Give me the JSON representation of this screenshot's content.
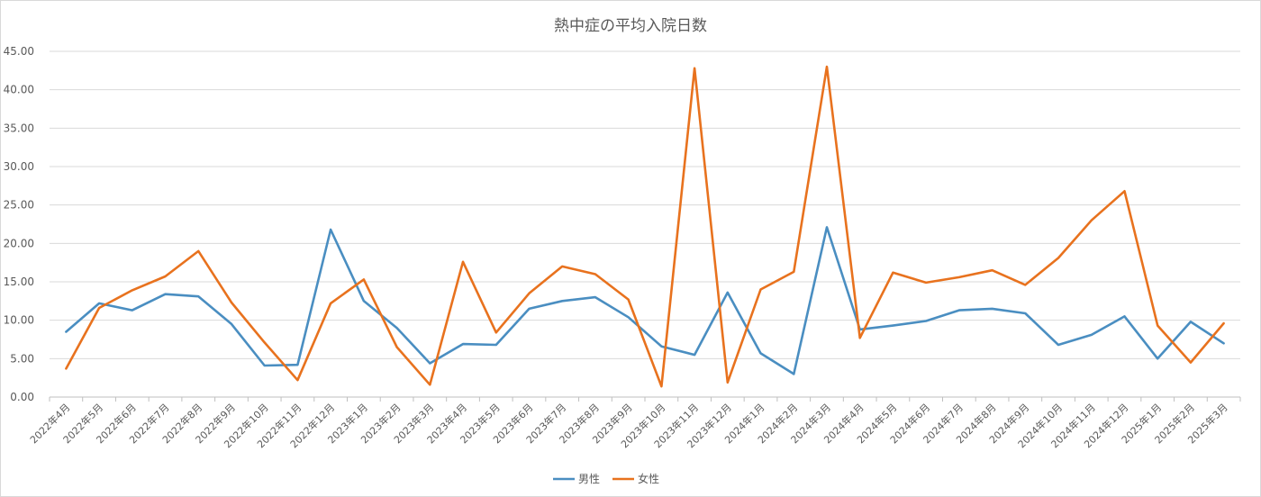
{
  "chart_data": {
    "type": "line",
    "title": "熱中症の平均入院日数",
    "xlabel": "",
    "ylabel": "",
    "ylim": [
      0,
      45
    ],
    "yticks": [
      "0.00",
      "5.00",
      "10.00",
      "15.00",
      "20.00",
      "25.00",
      "30.00",
      "35.00",
      "40.00",
      "45.00"
    ],
    "grid": true,
    "legend_position": "bottom",
    "categories": [
      "2022年4月",
      "2022年5月",
      "2022年6月",
      "2022年7月",
      "2022年8月",
      "2022年9月",
      "2022年10月",
      "2022年11月",
      "2022年12月",
      "2023年1月",
      "2023年2月",
      "2023年3月",
      "2023年4月",
      "2023年5月",
      "2023年6月",
      "2023年7月",
      "2023年8月",
      "2023年9月",
      "2023年10月",
      "2023年11月",
      "2023年12月",
      "2024年1月",
      "2024年2月",
      "2024年3月",
      "2024年4月",
      "2024年5月",
      "2024年6月",
      "2024年7月",
      "2024年8月",
      "2024年9月",
      "2024年10月",
      "2024年11月",
      "2024年12月",
      "2025年1月",
      "2025年2月",
      "2025年3月"
    ],
    "series": [
      {
        "name": "男性",
        "color": "#4a8ec1",
        "values": [
          8.5,
          12.2,
          11.3,
          13.4,
          13.1,
          9.5,
          4.1,
          4.2,
          21.8,
          12.5,
          9.0,
          4.4,
          6.9,
          6.8,
          11.5,
          12.5,
          13.0,
          10.4,
          6.6,
          5.5,
          13.6,
          5.7,
          3.0,
          22.1,
          8.8,
          9.3,
          9.9,
          11.3,
          11.5,
          10.9,
          6.8,
          8.1,
          10.5,
          5.0,
          9.8,
          7.0
        ]
      },
      {
        "name": "女性",
        "color": "#e8721e",
        "values": [
          3.7,
          11.6,
          13.9,
          15.7,
          19.0,
          12.3,
          7.1,
          2.2,
          12.2,
          15.3,
          6.5,
          1.6,
          17.6,
          8.4,
          13.5,
          17.0,
          16.0,
          12.7,
          1.4,
          42.8,
          1.9,
          14.0,
          16.3,
          43.0,
          7.7,
          16.2,
          14.9,
          15.6,
          16.5,
          14.6,
          18.1,
          23.0,
          26.8,
          9.3,
          4.5,
          9.6
        ]
      }
    ]
  }
}
